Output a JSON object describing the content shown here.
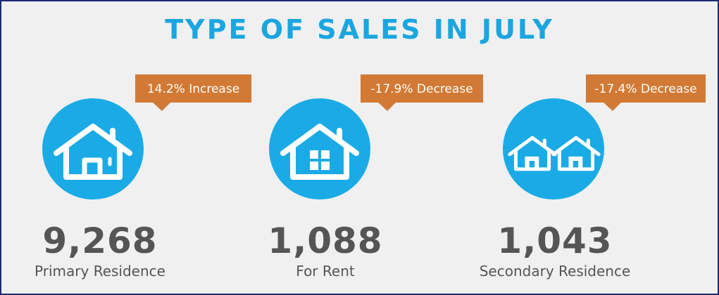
{
  "title": "TYPE OF SALES IN JULY",
  "items": [
    {
      "change": "14.2% Increase",
      "value": "9,268",
      "label": "Primary Residence"
    },
    {
      "change": "-17.9% Decrease",
      "value": "1,088",
      "label": "For Rent"
    },
    {
      "change": "-17.4% Decrease",
      "value": "1,043",
      "label": "Secondary Residence"
    }
  ]
}
